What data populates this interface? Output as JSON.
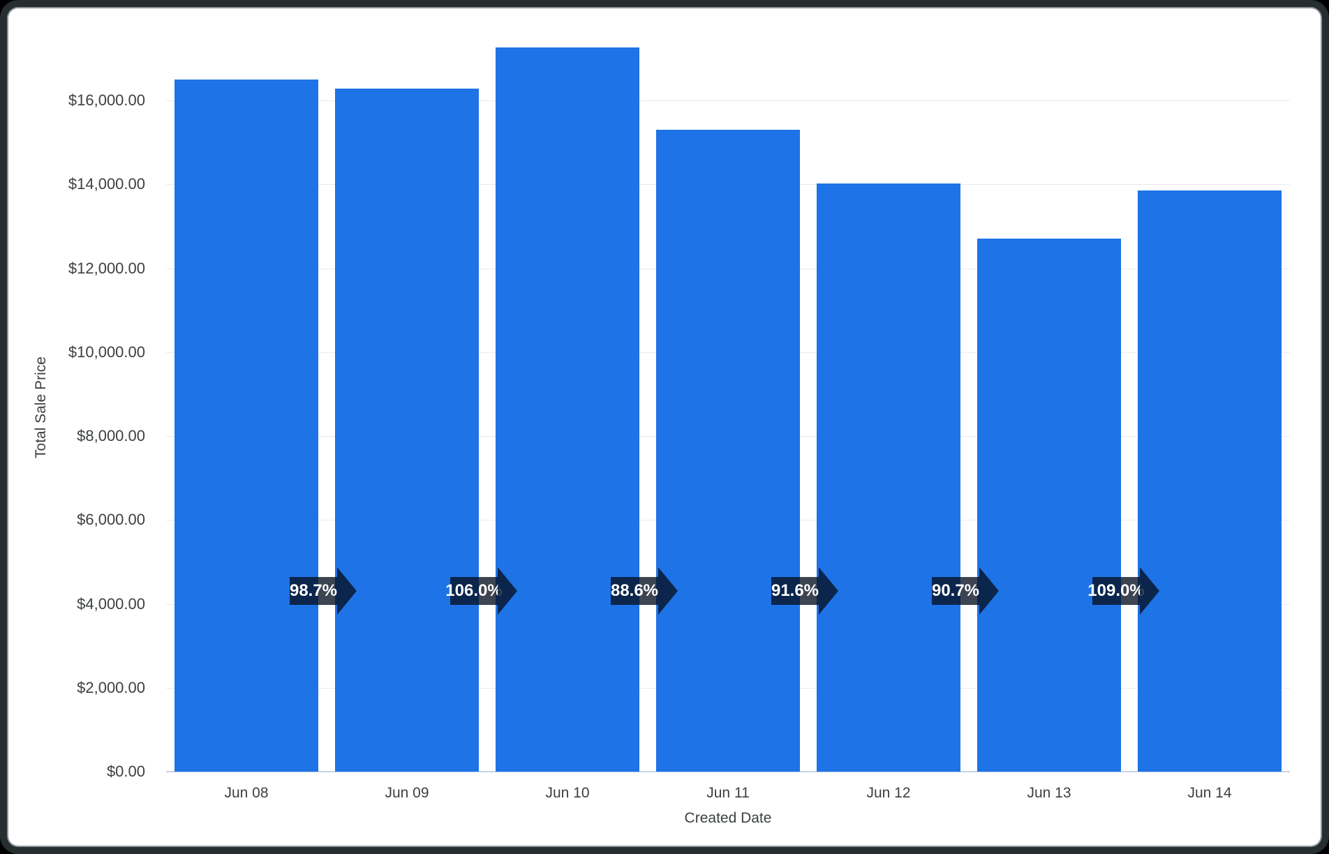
{
  "chart_data": {
    "type": "bar",
    "title": "",
    "xlabel": "Created Date",
    "ylabel": "Total Sale Price",
    "categories": [
      "Jun 08",
      "Jun 09",
      "Jun 10",
      "Jun 11",
      "Jun 12",
      "Jun 13",
      "Jun 14"
    ],
    "values": [
      16500,
      16285,
      17265,
      15295,
      14015,
      12710,
      13855
    ],
    "ratio_labels": [
      "98.7%",
      "106.0%",
      "88.6%",
      "91.6%",
      "90.7%",
      "109.0%"
    ],
    "y_ticks": [
      {
        "value": 0,
        "label": "$0.00"
      },
      {
        "value": 2000,
        "label": "$2,000.00"
      },
      {
        "value": 4000,
        "label": "$4,000.00"
      },
      {
        "value": 6000,
        "label": "$6,000.00"
      },
      {
        "value": 8000,
        "label": "$8,000.00"
      },
      {
        "value": 10000,
        "label": "$10,000.00"
      },
      {
        "value": 12000,
        "label": "$12,000.00"
      },
      {
        "value": 14000,
        "label": "$14,000.00"
      },
      {
        "value": 16000,
        "label": "$16,000.00"
      }
    ],
    "ylim": [
      0,
      16000
    ],
    "grid": true,
    "legend": false,
    "colors": {
      "bar": "#1e73e6",
      "text": "#3c4043",
      "gridline": "#e8eaed",
      "baseline": "#c9d3e6",
      "ratio_arrow": "rgba(7,16,32,0.78)",
      "ratio_text": "#ffffff"
    }
  }
}
